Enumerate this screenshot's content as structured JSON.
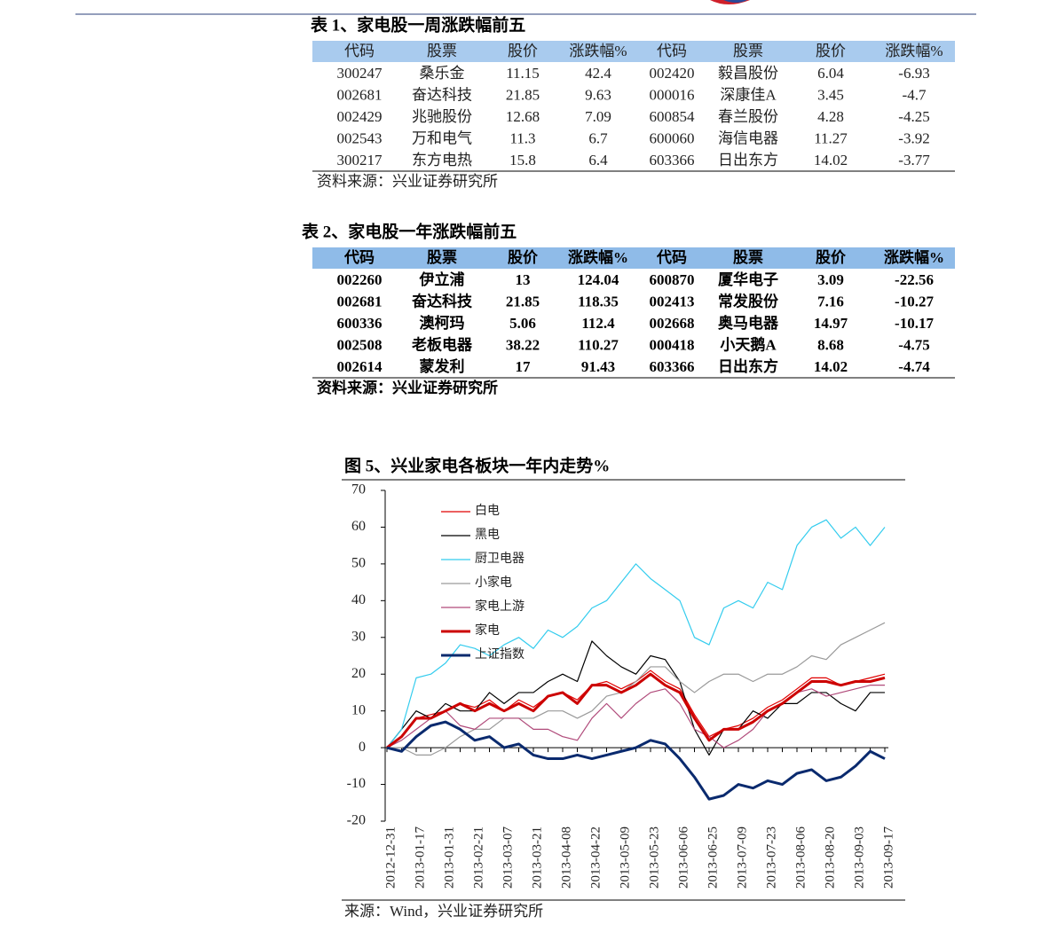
{
  "table1": {
    "title": "表 1、家电股一周涨跌幅前五",
    "columns": [
      "代码",
      "股票",
      "股价",
      "涨跌幅%",
      "代码",
      "股票",
      "股价",
      "涨跌幅%"
    ],
    "rows": [
      [
        "300247",
        "桑乐金",
        "11.15",
        "42.4",
        "002420",
        "毅昌股份",
        "6.04",
        "-6.93"
      ],
      [
        "002681",
        "奋达科技",
        "21.85",
        "9.63",
        "000016",
        "深康佳A",
        "3.45",
        "-4.7"
      ],
      [
        "002429",
        "兆驰股份",
        "12.68",
        "7.09",
        "600854",
        "春兰股份",
        "4.28",
        "-4.25"
      ],
      [
        "002543",
        "万和电气",
        "11.3",
        "6.7",
        "600060",
        "海信电器",
        "11.27",
        "-3.92"
      ],
      [
        "300217",
        "东方电热",
        "15.8",
        "6.4",
        "603366",
        "日出东方",
        "14.02",
        "-3.77"
      ]
    ],
    "source": "资料来源：兴业证券研究所"
  },
  "table2": {
    "title": "表 2、家电股一年涨跌幅前五",
    "columns": [
      "代码",
      "股票",
      "股价",
      "涨跌幅%",
      "代码",
      "股票",
      "股价",
      "涨跌幅%"
    ],
    "rows": [
      [
        "002260",
        "伊立浦",
        "13",
        "124.04",
        "600870",
        "厦华电子",
        "3.09",
        "-22.56"
      ],
      [
        "002681",
        "奋达科技",
        "21.85",
        "118.35",
        "002413",
        "常发股份",
        "7.16",
        "-10.27"
      ],
      [
        "600336",
        "澳柯玛",
        "5.06",
        "112.4",
        "002668",
        "奥马电器",
        "14.97",
        "-10.17"
      ],
      [
        "002508",
        "老板电器",
        "38.22",
        "110.27",
        "000418",
        "小天鹅A",
        "8.68",
        "-4.75"
      ],
      [
        "002614",
        "蒙发利",
        "17",
        "91.43",
        "603366",
        "日出东方",
        "14.02",
        "-4.74"
      ]
    ],
    "source": "资料来源：兴业证券研究所"
  },
  "chart_data": {
    "type": "line",
    "title": "图 5、兴业家电各板块一年内走势%",
    "source": "来源：Wind，兴业证券研究所",
    "x": [
      "2012-12-31",
      null,
      "2013-01-17",
      null,
      "2013-01-31",
      null,
      "2013-02-21",
      null,
      "2013-03-07",
      null,
      "2013-03-21",
      null,
      "2013-04-08",
      null,
      "2013-04-22",
      null,
      "2013-05-09",
      null,
      "2013-05-23",
      null,
      "2013-06-06",
      null,
      "2013-06-25",
      null,
      "2013-07-09",
      null,
      "2013-07-23",
      null,
      "2013-08-06",
      null,
      "2013-08-20",
      null,
      "2013-09-03",
      null,
      "2013-09-17"
    ],
    "ylim": [
      -20,
      70
    ],
    "yticks": [
      -20,
      -10,
      0,
      10,
      20,
      30,
      40,
      50,
      60,
      70
    ],
    "series": [
      {
        "name": "白电",
        "color": "#e00000",
        "width": 1.2,
        "values": [
          0,
          3,
          8,
          9,
          10,
          12,
          11,
          13,
          10,
          13,
          11,
          14,
          15,
          13,
          17,
          18,
          16,
          18,
          21,
          18,
          16,
          9,
          3,
          5,
          6,
          8,
          11,
          13,
          16,
          19,
          19,
          17,
          18,
          19,
          20
        ]
      },
      {
        "name": "黑电",
        "color": "#000000",
        "width": 1.2,
        "values": [
          0,
          5,
          10,
          8,
          12,
          10,
          10,
          15,
          12,
          15,
          15,
          18,
          20,
          18,
          29,
          25,
          22,
          20,
          25,
          24,
          18,
          5,
          -2,
          5,
          5,
          10,
          8,
          12,
          12,
          15,
          15,
          12,
          10,
          15,
          15
        ]
      },
      {
        "name": "厨卫电器",
        "color": "#33ccee",
        "width": 1.2,
        "values": [
          0,
          5,
          19,
          20,
          23,
          28,
          27,
          25,
          28,
          30,
          27,
          32,
          30,
          33,
          38,
          40,
          45,
          50,
          46,
          43,
          40,
          30,
          28,
          38,
          40,
          38,
          45,
          43,
          55,
          60,
          62,
          57,
          60,
          55,
          60
        ]
      },
      {
        "name": "小家电",
        "color": "#9a9a9a",
        "width": 1.2,
        "values": [
          0,
          0,
          -2,
          -2,
          0,
          3,
          5,
          5,
          8,
          8,
          8,
          10,
          10,
          8,
          10,
          14,
          15,
          18,
          22,
          22,
          18,
          15,
          18,
          20,
          20,
          18,
          20,
          20,
          22,
          25,
          24,
          28,
          30,
          32,
          34
        ]
      },
      {
        "name": "家电上游",
        "color": "#b04a7a",
        "width": 1.2,
        "values": [
          0,
          2,
          5,
          8,
          10,
          6,
          5,
          8,
          8,
          8,
          5,
          5,
          3,
          2,
          8,
          12,
          8,
          12,
          15,
          16,
          12,
          5,
          3,
          0,
          2,
          5,
          10,
          12,
          15,
          16,
          14,
          15,
          16,
          17,
          17
        ]
      },
      {
        "name": "家电",
        "color": "#cc0000",
        "width": 3,
        "values": [
          0,
          3,
          8,
          8,
          10,
          12,
          10,
          12,
          10,
          12,
          10,
          14,
          15,
          12,
          17,
          17,
          15,
          17,
          20,
          17,
          15,
          8,
          2,
          5,
          5,
          7,
          10,
          12,
          15,
          18,
          18,
          17,
          18,
          18,
          19
        ]
      },
      {
        "name": "上证指数",
        "color": "#0a2a6e",
        "width": 3,
        "values": [
          0,
          -1,
          3,
          6,
          7,
          5,
          2,
          3,
          0,
          1,
          -2,
          -3,
          -3,
          -2,
          -3,
          -2,
          -1,
          0,
          2,
          1,
          -3,
          -8,
          -14,
          -13,
          -10,
          -11,
          -9,
          -10,
          -7,
          -6,
          -9,
          -8,
          -5,
          -1,
          -3
        ]
      }
    ]
  }
}
